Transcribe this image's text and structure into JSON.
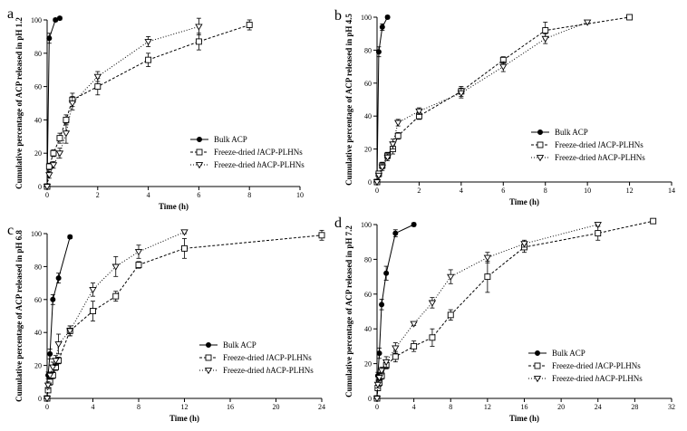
{
  "chart_data": [
    {
      "panel": "a",
      "type": "line",
      "xlabel": "Time (h)",
      "ylabel": "Cumulative percentage of ACP released in pH 1.2",
      "xlim": [
        0,
        10
      ],
      "ylim": [
        0,
        100
      ],
      "xticks": [
        0,
        2,
        4,
        6,
        8,
        10
      ],
      "yticks": [
        0,
        20,
        40,
        60,
        80,
        100
      ],
      "series": [
        {
          "name": "Bulk ACP",
          "marker": "circle",
          "style": "solid",
          "x": [
            0,
            0.083,
            0.33,
            0.5
          ],
          "y": [
            0,
            89,
            100,
            101
          ],
          "err": [
            0,
            3,
            1,
            1
          ]
        },
        {
          "name": "Freeze-dried lACP-PLHNs",
          "prefix": "Freeze-dried ",
          "italic": "l",
          "suffix": "ACP-PLHNs",
          "marker": "square",
          "style": "dashed",
          "x": [
            0,
            0.083,
            0.25,
            0.5,
            0.75,
            1,
            2,
            4,
            6,
            8
          ],
          "y": [
            0,
            12,
            20,
            29,
            40,
            52,
            60,
            76,
            87,
            97
          ],
          "err": [
            0,
            2,
            2,
            3,
            3,
            4,
            5,
            4,
            5,
            3
          ]
        },
        {
          "name": "Freeze-dried hACP-PLHNs",
          "prefix": "Freeze-dried ",
          "italic": "h",
          "suffix": "ACP-PLHNs",
          "marker": "triangle",
          "style": "dotted",
          "x": [
            0,
            0.083,
            0.25,
            0.5,
            0.75,
            1,
            2,
            4,
            6
          ],
          "y": [
            0,
            7,
            13,
            20,
            32,
            50,
            66,
            87,
            96
          ],
          "err": [
            0,
            2,
            2,
            3,
            6,
            4,
            3,
            3,
            5
          ]
        }
      ]
    },
    {
      "panel": "b",
      "type": "line",
      "xlabel": "Time (h)",
      "ylabel": "Cumulative percentage of ACP released in pH 4.5",
      "xlim": [
        0,
        14
      ],
      "ylim": [
        0,
        100
      ],
      "xticks": [
        0,
        2,
        4,
        6,
        8,
        10,
        12,
        14
      ],
      "yticks": [
        0,
        20,
        40,
        60,
        80,
        100
      ],
      "series": [
        {
          "name": "Bulk ACP",
          "marker": "circle",
          "style": "solid",
          "x": [
            0,
            0.083,
            0.25,
            0.5
          ],
          "y": [
            0,
            79,
            94,
            100
          ],
          "err": [
            0,
            3,
            2,
            1
          ]
        },
        {
          "name": "Freeze-dried lACP-PLHNs",
          "prefix": "Freeze-dried ",
          "italic": "l",
          "suffix": "ACP-PLHNs",
          "marker": "square",
          "style": "dashed",
          "x": [
            0,
            0.083,
            0.25,
            0.5,
            0.75,
            1,
            2,
            4,
            6,
            8,
            12
          ],
          "y": [
            0,
            5,
            10,
            16,
            20,
            28,
            40,
            55,
            74,
            92,
            100
          ],
          "err": [
            0,
            1,
            2,
            2,
            3,
            2,
            2,
            3,
            2,
            5,
            1
          ]
        },
        {
          "name": "Freeze-dried hACP-PLHNs",
          "prefix": "Freeze-dried ",
          "italic": "h",
          "suffix": "ACP-PLHNs",
          "marker": "triangle",
          "style": "dotted",
          "x": [
            0,
            0.083,
            0.25,
            0.5,
            0.75,
            1,
            2,
            4,
            6,
            8,
            10
          ],
          "y": [
            0,
            4,
            9,
            15,
            23,
            36,
            43,
            54,
            70,
            87,
            97
          ],
          "err": [
            0,
            1,
            2,
            2,
            3,
            2,
            2,
            3,
            3,
            3,
            1
          ]
        }
      ]
    },
    {
      "panel": "c",
      "type": "line",
      "xlabel": "Time (h)",
      "ylabel": "Cumulative percentage of ACP released in pH 6.8",
      "xlim": [
        0,
        24
      ],
      "ylim": [
        0,
        100
      ],
      "xticks": [
        0,
        4,
        8,
        12,
        16,
        20,
        24
      ],
      "yticks": [
        0,
        20,
        40,
        60,
        80,
        100
      ],
      "series": [
        {
          "name": "Bulk ACP",
          "marker": "circle",
          "style": "solid",
          "x": [
            0,
            0.083,
            0.25,
            0.5,
            1,
            2
          ],
          "y": [
            0,
            14,
            27,
            60,
            73,
            98
          ],
          "err": [
            0,
            2,
            3,
            3,
            3,
            1
          ]
        },
        {
          "name": "Freeze-dried lACP-PLHNs",
          "prefix": "Freeze-dried ",
          "italic": "l",
          "suffix": "ACP-PLHNs",
          "marker": "square",
          "style": "dashed",
          "x": [
            0,
            0.083,
            0.25,
            0.5,
            0.75,
            1,
            2,
            4,
            6,
            8,
            12,
            24
          ],
          "y": [
            0,
            5,
            10,
            14,
            19,
            23,
            41,
            53,
            62,
            81,
            91,
            99
          ],
          "err": [
            0,
            1,
            2,
            2,
            2,
            2,
            3,
            6,
            3,
            2,
            6,
            3
          ]
        },
        {
          "name": "Freeze-dried hACP-PLHNs",
          "prefix": "Freeze-dried ",
          "italic": "h",
          "suffix": "ACP-PLHNs",
          "marker": "triangle",
          "style": "dotted",
          "x": [
            0,
            0.083,
            0.25,
            0.5,
            0.75,
            1,
            2,
            4,
            6,
            8,
            12
          ],
          "y": [
            0,
            8,
            14,
            19,
            23,
            33,
            41,
            66,
            80,
            89,
            101
          ],
          "err": [
            0,
            2,
            2,
            3,
            3,
            6,
            3,
            4,
            6,
            4,
            1
          ]
        }
      ]
    },
    {
      "panel": "d",
      "type": "line",
      "xlabel": "Time (h)",
      "ylabel": "Cumulative percentage of ACP released in pH 7.2",
      "xlim": [
        0,
        32
      ],
      "ylim": [
        0,
        100
      ],
      "xticks": [
        0,
        4,
        8,
        12,
        16,
        20,
        24,
        28,
        32
      ],
      "yticks": [
        0,
        20,
        40,
        60,
        80,
        100
      ],
      "series": [
        {
          "name": "Bulk ACP",
          "marker": "circle",
          "style": "solid",
          "x": [
            0,
            0.083,
            0.25,
            0.5,
            1,
            2,
            4
          ],
          "y": [
            0,
            13,
            26,
            54,
            72,
            95,
            100
          ],
          "err": [
            0,
            2,
            3,
            3,
            4,
            2,
            1
          ]
        },
        {
          "name": "Freeze-dried lACP-PLHNs",
          "prefix": "Freeze-dried ",
          "italic": "l",
          "suffix": "ACP-PLHNs",
          "marker": "square",
          "style": "dashed",
          "x": [
            0,
            0.083,
            0.25,
            0.5,
            1,
            2,
            4,
            6,
            8,
            12,
            16,
            24,
            30
          ],
          "y": [
            0,
            6,
            9,
            13,
            19,
            24,
            30,
            35,
            48,
            70,
            87,
            95,
            102
          ],
          "err": [
            0,
            1,
            2,
            2,
            2,
            3,
            3,
            5,
            3,
            9,
            3,
            4,
            1
          ]
        },
        {
          "name": "Freeze-dried hACP-PLHNs",
          "prefix": "Freeze-dried ",
          "italic": "h",
          "suffix": "ACP-PLHNs",
          "marker": "triangle",
          "style": "dotted",
          "x": [
            0,
            0.083,
            0.25,
            0.5,
            1,
            2,
            4,
            6,
            8,
            12,
            16,
            24
          ],
          "y": [
            0,
            8,
            12,
            16,
            21,
            29,
            43,
            55,
            70,
            81,
            89,
            100
          ],
          "err": [
            0,
            2,
            2,
            2,
            3,
            3,
            1,
            3,
            4,
            3,
            2,
            1
          ]
        }
      ]
    }
  ]
}
